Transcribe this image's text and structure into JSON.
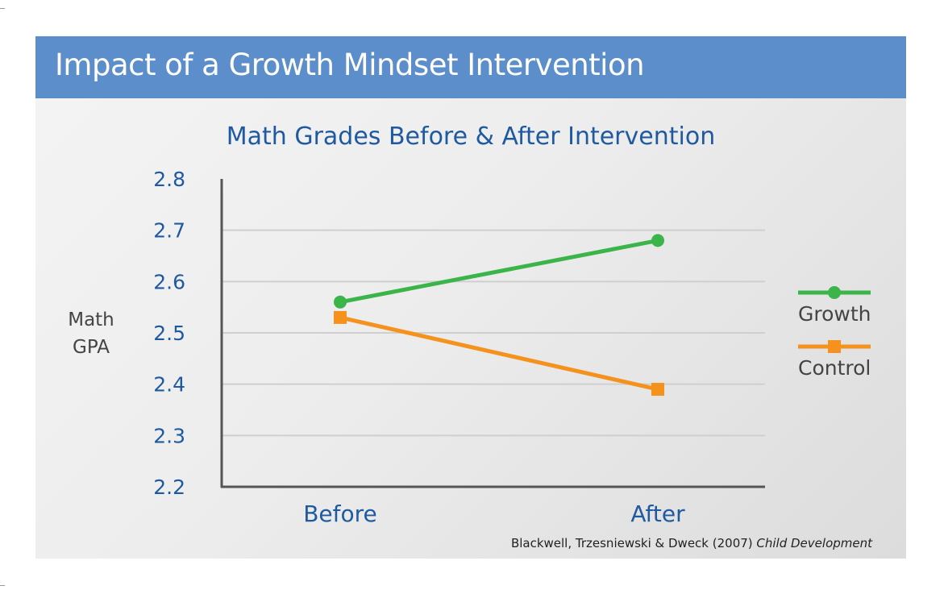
{
  "header": {
    "title": "Impact of a Growth Mindset Intervention"
  },
  "chart_data": {
    "type": "line",
    "title": "Math Grades Before & After Intervention",
    "ylabel_lines": [
      "Math",
      "GPA"
    ],
    "categories": [
      "Before",
      "After"
    ],
    "ylim": [
      2.2,
      2.8
    ],
    "yticks": [
      "2.2",
      "2.3",
      "2.4",
      "2.5",
      "2.6",
      "2.7",
      "2.8"
    ],
    "grid": true,
    "legend_position": "right",
    "series": [
      {
        "name": "Growth",
        "values": [
          2.56,
          2.68
        ],
        "color": "#3bb54a",
        "marker": "circle"
      },
      {
        "name": "Control",
        "values": [
          2.53,
          2.39
        ],
        "color": "#f5921e",
        "marker": "square"
      }
    ],
    "source": {
      "authors": "Blackwell, Trzesniewski & Dweck (2007) ",
      "journal": "Child Development"
    }
  },
  "colors": {
    "header_bg": "#5b8ecb",
    "text_blue": "#1f5aa0",
    "grid": "#cfcfcf",
    "axis": "#555555"
  }
}
